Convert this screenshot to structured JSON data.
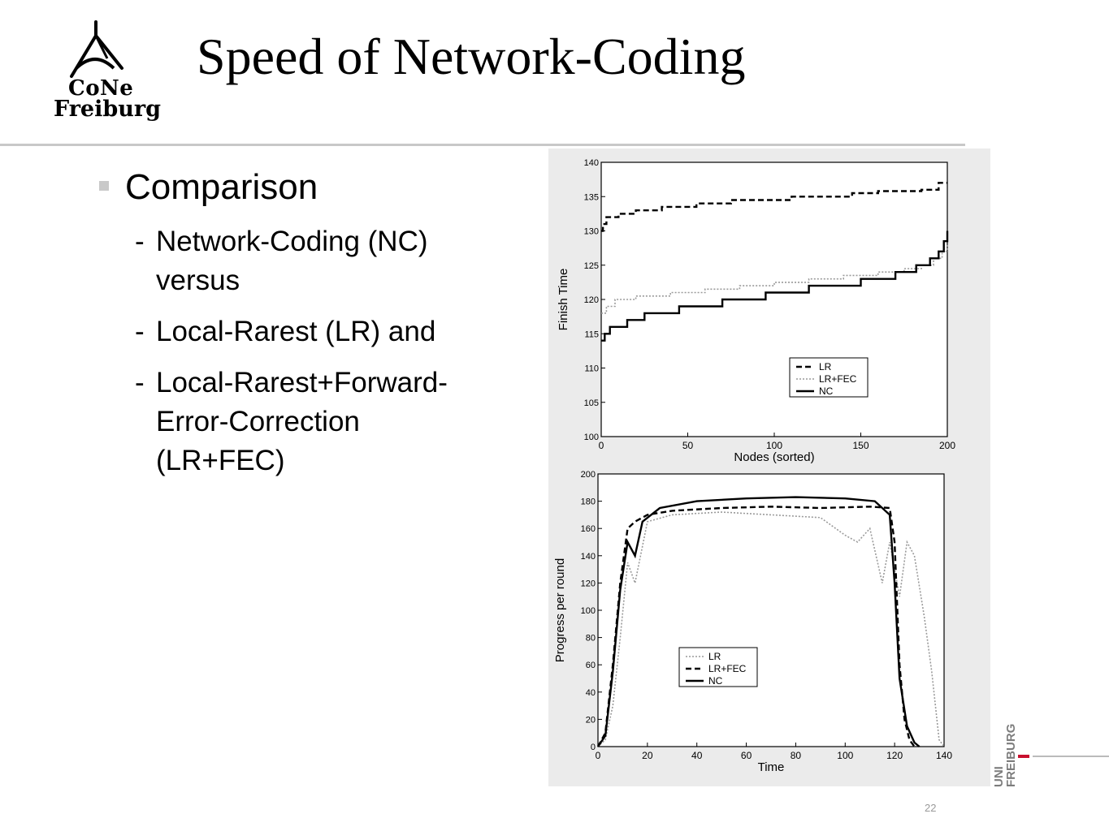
{
  "logo": {
    "line1": "CoNe",
    "line2": "Freiburg"
  },
  "title": "Speed of Network-Coding",
  "bullet": {
    "text": "Comparison"
  },
  "subitems": [
    {
      "dash": "-",
      "text": "Network-Coding (NC) versus"
    },
    {
      "dash": "-",
      "text": "Local-Rarest (LR) and"
    },
    {
      "dash": "-",
      "text": "Local-Rarest+Forward-Error-Correction (LR+FEC)"
    }
  ],
  "page_number": "22",
  "uni_logo": {
    "line1": "UNI",
    "line2": "FREIBURG"
  },
  "chart_data": [
    {
      "type": "line",
      "xlabel": "Nodes (sorted)",
      "ylabel": "Finish Time",
      "xlim": [
        0,
        200
      ],
      "ylim": [
        100,
        140
      ],
      "xticks": [
        0,
        50,
        100,
        150,
        200
      ],
      "yticks": [
        100,
        105,
        110,
        115,
        120,
        125,
        130,
        135,
        140
      ],
      "legend_position": "lower-right",
      "series": [
        {
          "name": "LR",
          "style": "dashed",
          "x": [
            0,
            1,
            3,
            10,
            20,
            35,
            55,
            75,
            110,
            130,
            145,
            160,
            185,
            195,
            200
          ],
          "y": [
            130,
            131,
            132,
            132.5,
            133,
            133.5,
            134,
            134.5,
            135,
            135,
            135.5,
            135.8,
            136,
            137,
            137
          ]
        },
        {
          "name": "LR+FEC",
          "style": "dotted",
          "x": [
            0,
            3,
            8,
            20,
            40,
            60,
            80,
            100,
            120,
            140,
            160,
            175,
            185,
            192,
            197,
            200
          ],
          "y": [
            118,
            119,
            120,
            120.5,
            121,
            121.5,
            122,
            122.5,
            123,
            123.5,
            124,
            124.5,
            125,
            126,
            127,
            128
          ]
        },
        {
          "name": "NC",
          "style": "solid",
          "x": [
            0,
            2,
            5,
            15,
            25,
            45,
            70,
            95,
            120,
            150,
            170,
            182,
            190,
            195,
            198,
            200
          ],
          "y": [
            114,
            115,
            116,
            117,
            118,
            119,
            120,
            121,
            122,
            123,
            124,
            125,
            126,
            127,
            128.5,
            130
          ]
        }
      ]
    },
    {
      "type": "line",
      "xlabel": "Time",
      "ylabel": "Progress per round",
      "xlim": [
        0,
        140
      ],
      "ylim": [
        0,
        200
      ],
      "xticks": [
        0,
        20,
        40,
        60,
        80,
        100,
        120,
        140
      ],
      "yticks": [
        0,
        20,
        40,
        60,
        80,
        100,
        120,
        140,
        160,
        180,
        200
      ],
      "legend_position": "center-left",
      "series": [
        {
          "name": "LR",
          "style": "dotted",
          "x": [
            0,
            3,
            6,
            9,
            12,
            15,
            20,
            30,
            50,
            70,
            90,
            100,
            105,
            110,
            115,
            118,
            122,
            125,
            128,
            132,
            135,
            138,
            140
          ],
          "y": [
            0,
            5,
            30,
            80,
            135,
            120,
            165,
            170,
            172,
            170,
            168,
            155,
            150,
            160,
            120,
            150,
            110,
            150,
            140,
            95,
            55,
            5,
            0
          ]
        },
        {
          "name": "LR+FEC",
          "style": "dashed",
          "x": [
            0,
            3,
            6,
            9,
            12,
            15,
            20,
            30,
            50,
            70,
            90,
            110,
            118,
            120,
            122,
            124,
            126,
            128
          ],
          "y": [
            0,
            10,
            60,
            120,
            160,
            165,
            170,
            173,
            175,
            176,
            175,
            176,
            175,
            150,
            60,
            20,
            5,
            0
          ]
        },
        {
          "name": "NC",
          "style": "solid",
          "x": [
            0,
            3,
            6,
            9,
            12,
            15,
            18,
            25,
            40,
            60,
            80,
            100,
            112,
            118,
            120,
            122,
            125,
            128,
            130
          ],
          "y": [
            0,
            8,
            55,
            115,
            150,
            140,
            165,
            175,
            180,
            182,
            183,
            182,
            180,
            170,
            120,
            50,
            15,
            3,
            0
          ]
        }
      ]
    }
  ]
}
